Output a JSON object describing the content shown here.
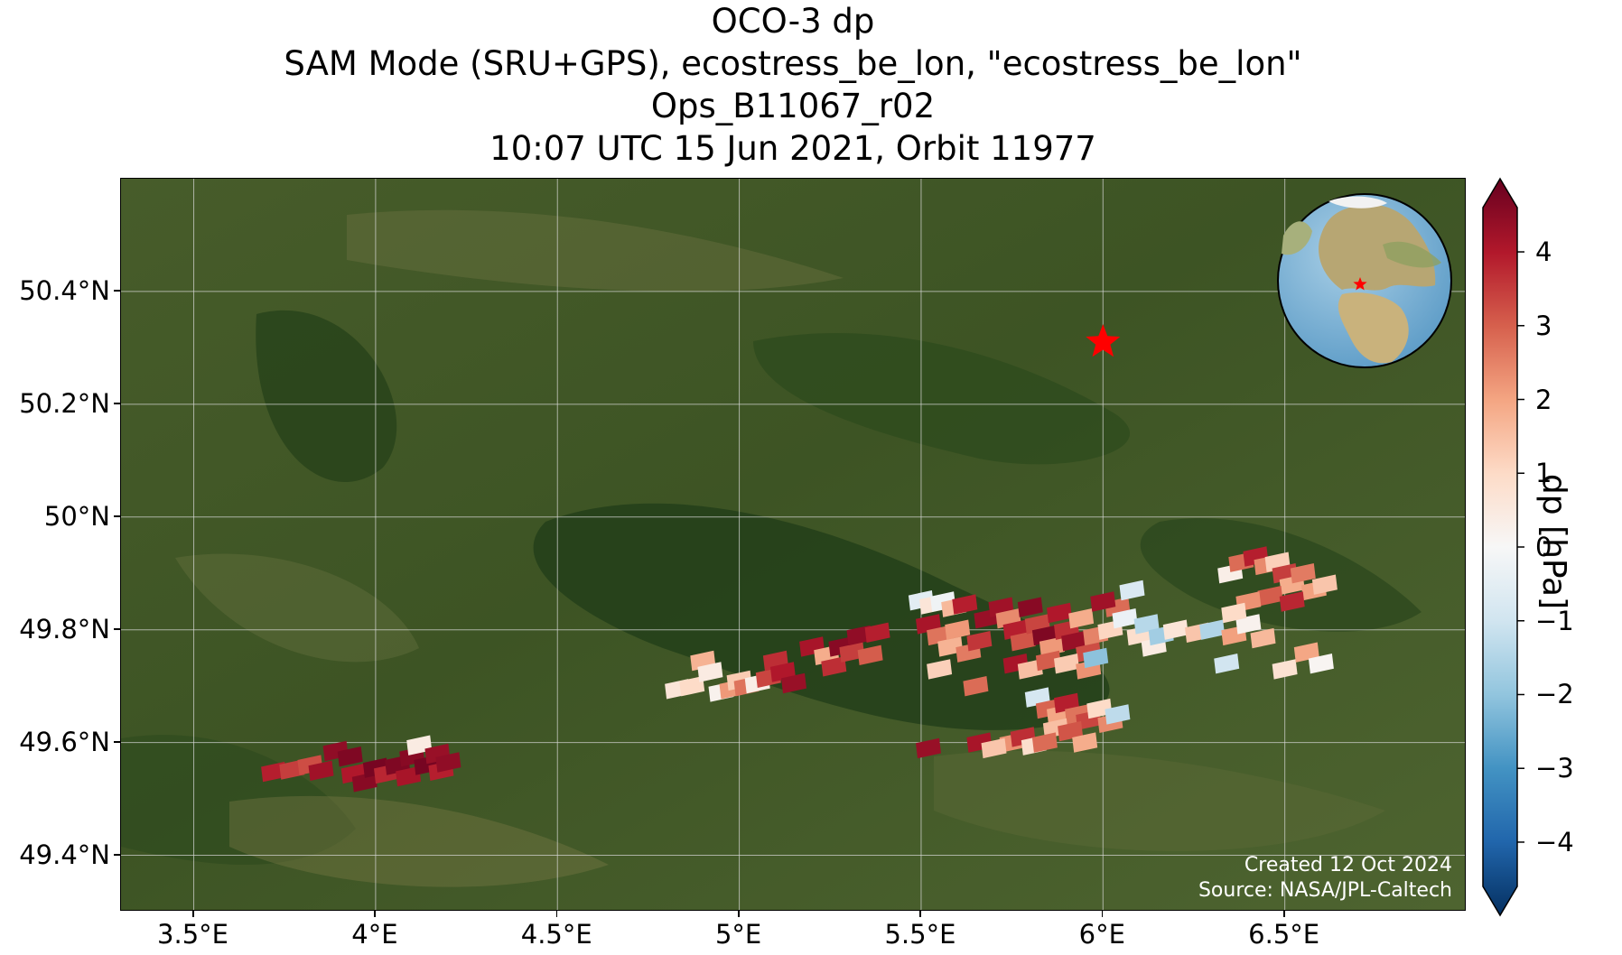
{
  "title_lines": [
    "OCO-3 dp",
    "SAM Mode (SRU+GPS), ecostress_be_lon, \"ecostress_be_lon\"",
    "Ops_B11067_r02",
    "10:07 UTC 15 Jun 2021, Orbit 11977"
  ],
  "map": {
    "lon_range": [
      3.3,
      7.0
    ],
    "lat_range": [
      49.3,
      50.6
    ],
    "lon_ticks": [
      {
        "value": 3.5,
        "label": "3.5°E"
      },
      {
        "value": 4.0,
        "label": "4°E"
      },
      {
        "value": 4.5,
        "label": "4.5°E"
      },
      {
        "value": 5.0,
        "label": "5°E"
      },
      {
        "value": 5.5,
        "label": "5.5°E"
      },
      {
        "value": 6.0,
        "label": "6°E"
      },
      {
        "value": 6.5,
        "label": "6.5°E"
      }
    ],
    "lat_ticks": [
      {
        "value": 49.4,
        "label": "49.4°N"
      },
      {
        "value": 49.6,
        "label": "49.6°N"
      },
      {
        "value": 49.8,
        "label": "49.8°N"
      },
      {
        "value": 50.0,
        "label": "50°N"
      },
      {
        "value": 50.2,
        "label": "50.2°N"
      },
      {
        "value": 50.4,
        "label": "50.4°N"
      }
    ],
    "grid": true,
    "target_marker": {
      "lon": 6.0,
      "lat": 50.31,
      "symbol": "star",
      "color": "#ff0000"
    },
    "background": "satellite imagery",
    "inset_globe": {
      "position": "top-right",
      "marker_color": "#ff0000"
    }
  },
  "credits": {
    "created": "Created 12 Oct 2024",
    "source": "Source: NASA/JPL-Caltech"
  },
  "colorbar": {
    "label": "dp [hPa]",
    "min": -4.6,
    "max": 4.6,
    "ticks": [
      4,
      3,
      2,
      1,
      0,
      -1,
      -2,
      -3,
      -4
    ],
    "tick_labels": [
      "4",
      "3",
      "2",
      "1",
      "0",
      "−1",
      "−2",
      "−3",
      "−4"
    ],
    "colormap": "RdBu_r",
    "stops": [
      "#053061",
      "#2166ac",
      "#4393c3",
      "#92c5de",
      "#d1e5f0",
      "#f7f7f7",
      "#fddbc7",
      "#f4a582",
      "#d6604d",
      "#b2182b",
      "#67001f"
    ]
  },
  "soundings": [
    {
      "lon": 3.72,
      "lat": 49.548,
      "dp": 3.6
    },
    {
      "lon": 3.77,
      "lat": 49.552,
      "dp": 3.2
    },
    {
      "lon": 3.82,
      "lat": 49.56,
      "dp": 3.0
    },
    {
      "lon": 3.85,
      "lat": 49.55,
      "dp": 3.9
    },
    {
      "lon": 3.89,
      "lat": 49.585,
      "dp": 4.1
    },
    {
      "lon": 3.93,
      "lat": 49.575,
      "dp": 4.3
    },
    {
      "lon": 3.94,
      "lat": 49.545,
      "dp": 3.7
    },
    {
      "lon": 3.97,
      "lat": 49.53,
      "dp": 4.2
    },
    {
      "lon": 4.0,
      "lat": 49.555,
      "dp": 4.4
    },
    {
      "lon": 4.03,
      "lat": 49.545,
      "dp": 3.5
    },
    {
      "lon": 4.06,
      "lat": 49.56,
      "dp": 4.3
    },
    {
      "lon": 4.09,
      "lat": 49.54,
      "dp": 3.8
    },
    {
      "lon": 4.1,
      "lat": 49.575,
      "dp": 4.2
    },
    {
      "lon": 4.12,
      "lat": 49.595,
      "dp": 0.4
    },
    {
      "lon": 4.14,
      "lat": 49.56,
      "dp": 4.4
    },
    {
      "lon": 4.17,
      "lat": 49.58,
      "dp": 4.0
    },
    {
      "lon": 4.18,
      "lat": 49.55,
      "dp": 3.6
    },
    {
      "lon": 4.2,
      "lat": 49.565,
      "dp": 4.1
    },
    {
      "lon": 4.83,
      "lat": 49.695,
      "dp": 0.6
    },
    {
      "lon": 4.87,
      "lat": 49.7,
      "dp": 0.9
    },
    {
      "lon": 4.9,
      "lat": 49.745,
      "dp": 1.6
    },
    {
      "lon": 4.92,
      "lat": 49.725,
      "dp": 0.4
    },
    {
      "lon": 4.95,
      "lat": 49.69,
      "dp": 0.2
    },
    {
      "lon": 4.98,
      "lat": 49.695,
      "dp": 2.0
    },
    {
      "lon": 5.0,
      "lat": 49.71,
      "dp": 1.2
    },
    {
      "lon": 5.02,
      "lat": 49.7,
      "dp": 2.5
    },
    {
      "lon": 5.05,
      "lat": 49.705,
      "dp": 0.3
    },
    {
      "lon": 5.08,
      "lat": 49.715,
      "dp": 3.1
    },
    {
      "lon": 5.1,
      "lat": 49.745,
      "dp": 3.4
    },
    {
      "lon": 5.12,
      "lat": 49.725,
      "dp": 3.7
    },
    {
      "lon": 5.15,
      "lat": 49.705,
      "dp": 4.0
    },
    {
      "lon": 5.2,
      "lat": 49.77,
      "dp": 3.8
    },
    {
      "lon": 5.24,
      "lat": 49.755,
      "dp": 1.7
    },
    {
      "lon": 5.26,
      "lat": 49.735,
      "dp": 3.4
    },
    {
      "lon": 5.28,
      "lat": 49.77,
      "dp": 4.2
    },
    {
      "lon": 5.31,
      "lat": 49.76,
      "dp": 3.2
    },
    {
      "lon": 5.33,
      "lat": 49.79,
      "dp": 4.1
    },
    {
      "lon": 5.36,
      "lat": 49.755,
      "dp": 2.8
    },
    {
      "lon": 5.38,
      "lat": 49.795,
      "dp": 3.6
    },
    {
      "lon": 5.5,
      "lat": 49.852,
      "dp": -0.5
    },
    {
      "lon": 5.53,
      "lat": 49.845,
      "dp": 0.6
    },
    {
      "lon": 5.56,
      "lat": 49.85,
      "dp": -0.2
    },
    {
      "lon": 5.59,
      "lat": 49.84,
      "dp": 1.5
    },
    {
      "lon": 5.62,
      "lat": 49.845,
      "dp": 3.6
    },
    {
      "lon": 5.52,
      "lat": 49.81,
      "dp": 3.8
    },
    {
      "lon": 5.55,
      "lat": 49.79,
      "dp": 2.5
    },
    {
      "lon": 5.58,
      "lat": 49.77,
      "dp": 1.6
    },
    {
      "lon": 5.6,
      "lat": 49.8,
      "dp": 2.0
    },
    {
      "lon": 5.63,
      "lat": 49.76,
      "dp": 2.4
    },
    {
      "lon": 5.55,
      "lat": 49.73,
      "dp": 1.1
    },
    {
      "lon": 5.66,
      "lat": 49.78,
      "dp": 3.3
    },
    {
      "lon": 5.68,
      "lat": 49.82,
      "dp": 4.0
    },
    {
      "lon": 5.65,
      "lat": 49.7,
      "dp": 2.6
    },
    {
      "lon": 5.72,
      "lat": 49.84,
      "dp": 3.9
    },
    {
      "lon": 5.74,
      "lat": 49.82,
      "dp": 2.2
    },
    {
      "lon": 5.76,
      "lat": 49.8,
      "dp": 3.6
    },
    {
      "lon": 5.78,
      "lat": 49.78,
      "dp": 2.9
    },
    {
      "lon": 5.8,
      "lat": 49.84,
      "dp": 4.2
    },
    {
      "lon": 5.82,
      "lat": 49.81,
      "dp": 3.1
    },
    {
      "lon": 5.84,
      "lat": 49.79,
      "dp": 4.3
    },
    {
      "lon": 5.86,
      "lat": 49.77,
      "dp": 2.0
    },
    {
      "lon": 5.88,
      "lat": 49.83,
      "dp": 3.7
    },
    {
      "lon": 5.9,
      "lat": 49.8,
      "dp": 3.4
    },
    {
      "lon": 5.92,
      "lat": 49.78,
      "dp": 4.0
    },
    {
      "lon": 5.94,
      "lat": 49.82,
      "dp": 1.7
    },
    {
      "lon": 5.96,
      "lat": 49.76,
      "dp": 3.0
    },
    {
      "lon": 5.98,
      "lat": 49.79,
      "dp": 2.3
    },
    {
      "lon": 5.76,
      "lat": 49.74,
      "dp": 3.8
    },
    {
      "lon": 5.8,
      "lat": 49.73,
      "dp": 1.4
    },
    {
      "lon": 5.85,
      "lat": 49.745,
      "dp": 2.8
    },
    {
      "lon": 5.9,
      "lat": 49.74,
      "dp": 1.2
    },
    {
      "lon": 5.96,
      "lat": 49.73,
      "dp": 2.1
    },
    {
      "lon": 5.98,
      "lat": 49.75,
      "dp": -1.9
    },
    {
      "lon": 6.02,
      "lat": 49.8,
      "dp": 1.0
    },
    {
      "lon": 6.04,
      "lat": 49.84,
      "dp": 2.6
    },
    {
      "lon": 6.06,
      "lat": 49.82,
      "dp": -0.3
    },
    {
      "lon": 6.08,
      "lat": 49.87,
      "dp": -0.7
    },
    {
      "lon": 6.1,
      "lat": 49.79,
      "dp": 0.8
    },
    {
      "lon": 6.0,
      "lat": 49.85,
      "dp": 3.9
    },
    {
      "lon": 6.12,
      "lat": 49.81,
      "dp": -1.3
    },
    {
      "lon": 6.14,
      "lat": 49.77,
      "dp": 0.4
    },
    {
      "lon": 6.16,
      "lat": 49.79,
      "dp": -1.6
    },
    {
      "lon": 6.2,
      "lat": 49.8,
      "dp": 0.6
    },
    {
      "lon": 6.26,
      "lat": 49.795,
      "dp": 1.3
    },
    {
      "lon": 6.3,
      "lat": 49.8,
      "dp": -1.4
    },
    {
      "lon": 6.36,
      "lat": 49.79,
      "dp": 1.9
    },
    {
      "lon": 6.4,
      "lat": 49.81,
      "dp": 0.2
    },
    {
      "lon": 6.44,
      "lat": 49.785,
      "dp": 1.5
    },
    {
      "lon": 6.34,
      "lat": 49.74,
      "dp": -0.9
    },
    {
      "lon": 6.5,
      "lat": 49.73,
      "dp": 0.7
    },
    {
      "lon": 6.56,
      "lat": 49.76,
      "dp": 1.8
    },
    {
      "lon": 6.6,
      "lat": 49.74,
      "dp": 0.1
    },
    {
      "lon": 6.35,
      "lat": 49.9,
      "dp": 0.3
    },
    {
      "lon": 6.38,
      "lat": 49.92,
      "dp": 2.6
    },
    {
      "lon": 6.42,
      "lat": 49.93,
      "dp": 3.6
    },
    {
      "lon": 6.45,
      "lat": 49.915,
      "dp": 2.2
    },
    {
      "lon": 6.48,
      "lat": 49.92,
      "dp": 1.1
    },
    {
      "lon": 6.5,
      "lat": 49.9,
      "dp": 3.2
    },
    {
      "lon": 6.52,
      "lat": 49.88,
      "dp": 1.7
    },
    {
      "lon": 6.55,
      "lat": 49.9,
      "dp": 2.4
    },
    {
      "lon": 6.58,
      "lat": 49.87,
      "dp": 1.9
    },
    {
      "lon": 6.61,
      "lat": 49.88,
      "dp": 1.3
    },
    {
      "lon": 6.46,
      "lat": 49.86,
      "dp": 2.8
    },
    {
      "lon": 6.4,
      "lat": 49.85,
      "dp": 2.1
    },
    {
      "lon": 6.36,
      "lat": 49.83,
      "dp": 0.9
    },
    {
      "lon": 6.52,
      "lat": 49.85,
      "dp": 3.5
    },
    {
      "lon": 5.82,
      "lat": 49.68,
      "dp": -0.8
    },
    {
      "lon": 5.85,
      "lat": 49.66,
      "dp": 2.7
    },
    {
      "lon": 5.88,
      "lat": 49.65,
      "dp": 1.8
    },
    {
      "lon": 5.9,
      "lat": 49.67,
      "dp": 3.6
    },
    {
      "lon": 5.93,
      "lat": 49.65,
      "dp": 2.5
    },
    {
      "lon": 5.96,
      "lat": 49.64,
      "dp": 3.1
    },
    {
      "lon": 5.99,
      "lat": 49.66,
      "dp": 0.9
    },
    {
      "lon": 6.02,
      "lat": 49.635,
      "dp": 2.2
    },
    {
      "lon": 6.04,
      "lat": 49.65,
      "dp": -1.2
    },
    {
      "lon": 5.87,
      "lat": 49.625,
      "dp": 1.4
    },
    {
      "lon": 5.91,
      "lat": 49.62,
      "dp": 2.9
    },
    {
      "lon": 5.95,
      "lat": 49.6,
      "dp": 1.7
    },
    {
      "lon": 5.75,
      "lat": 49.6,
      "dp": 2.1
    },
    {
      "lon": 5.78,
      "lat": 49.61,
      "dp": 3.4
    },
    {
      "lon": 5.81,
      "lat": 49.595,
      "dp": 0.8
    },
    {
      "lon": 5.84,
      "lat": 49.6,
      "dp": 2.6
    },
    {
      "lon": 5.66,
      "lat": 49.6,
      "dp": 3.8
    },
    {
      "lon": 5.7,
      "lat": 49.59,
      "dp": 1.3
    },
    {
      "lon": 5.52,
      "lat": 49.59,
      "dp": 4.0
    }
  ]
}
